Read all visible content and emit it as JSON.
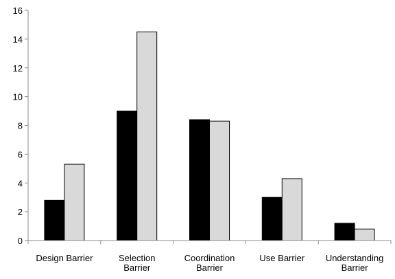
{
  "chart_data": {
    "type": "bar",
    "categories": [
      [
        "Design Barrier"
      ],
      [
        "Selection",
        "Barrier"
      ],
      [
        "Coordination",
        "Barrier"
      ],
      [
        "Use Barrier"
      ],
      [
        "Understanding",
        "Barrier"
      ]
    ],
    "series": [
      {
        "values": [
          2.8,
          9.0,
          8.4,
          3.0,
          1.2
        ],
        "color": "#000000"
      },
      {
        "values": [
          5.3,
          14.5,
          8.3,
          4.3,
          0.8
        ],
        "color": "#d9d9d9"
      }
    ],
    "title": "",
    "xlabel": "",
    "ylabel": "",
    "ylim": [
      0,
      16
    ],
    "yticks": [
      0,
      2,
      4,
      6,
      8,
      10,
      12,
      14,
      16
    ],
    "grid": false,
    "legend": "none"
  }
}
